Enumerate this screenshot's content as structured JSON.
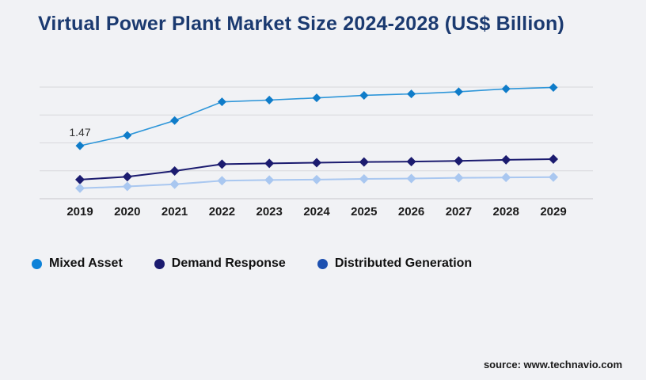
{
  "page": {
    "background": "#f1f2f5"
  },
  "header": {
    "title": "Virtual Power Plant Market Size 2024-2028 (US$ Billion)",
    "title_color": "#1b3a70"
  },
  "source": {
    "label": "source: www.technavio.com"
  },
  "chart_data": {
    "type": "line",
    "x": [
      "2019",
      "2020",
      "2021",
      "2022",
      "2023",
      "2024",
      "2025",
      "2026",
      "2027",
      "2028",
      "2029"
    ],
    "series": [
      {
        "name": "Mixed Asset",
        "legend_color": "#0d82d8",
        "line_color": "#2e96d9",
        "marker_color": "#0f7cc9",
        "values": [
          1.47,
          1.76,
          2.17,
          2.69,
          2.74,
          2.8,
          2.87,
          2.91,
          2.97,
          3.05,
          3.09
        ]
      },
      {
        "name": "Demand Response",
        "legend_color": "#1b1b6f",
        "line_color": "#1b1b6f",
        "marker_color": "#1b1b6f",
        "values": [
          0.53,
          0.61,
          0.77,
          0.96,
          0.98,
          1.0,
          1.02,
          1.03,
          1.05,
          1.08,
          1.1
        ]
      },
      {
        "name": "Distributed Generation",
        "legend_color": "#1d50b0",
        "line_color": "#a9c7f0",
        "marker_color": "#a9c7f0",
        "values": [
          0.29,
          0.34,
          0.4,
          0.5,
          0.52,
          0.53,
          0.55,
          0.56,
          0.58,
          0.59,
          0.6
        ]
      }
    ],
    "annotations": [
      {
        "text": "1.47",
        "series_index": 0,
        "x_index": 0
      }
    ],
    "title": "Virtual Power Plant Market Size 2024-2028 (US$ Billion)",
    "xlabel": "",
    "ylabel": "",
    "ylim": [
      0,
      3.1
    ],
    "y_axis_labels_visible": false,
    "grid": true,
    "gridline_count": 5,
    "gridline_color": "#d8d8dc",
    "legend_position": "bottom"
  }
}
